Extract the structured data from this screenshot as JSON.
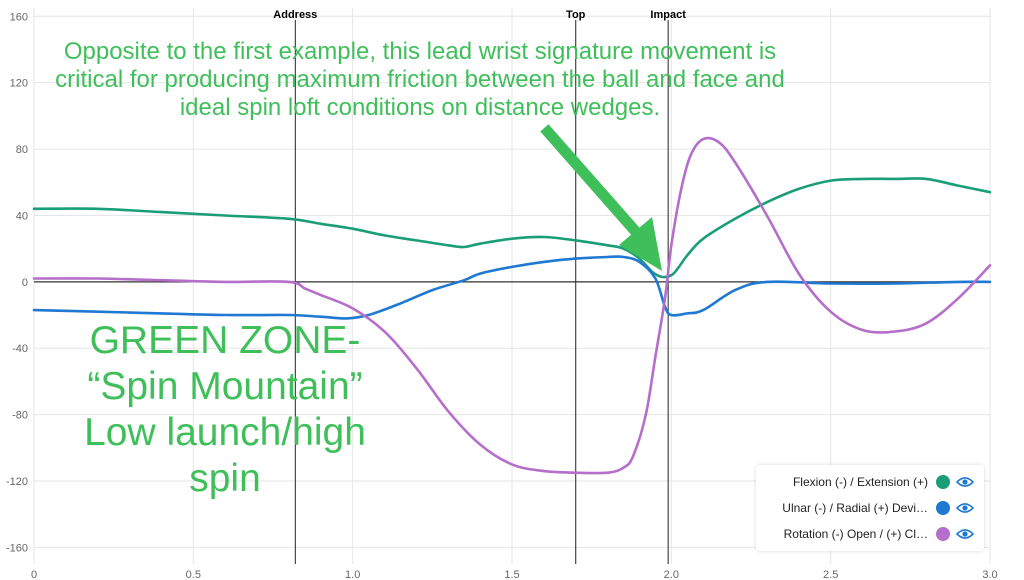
{
  "chart_data": {
    "type": "line",
    "xlim": [
      0,
      3.0
    ],
    "ylim": [
      -170,
      165
    ],
    "x_ticks": [
      "0",
      "0.5",
      "1.0",
      "1.5",
      "2.0",
      "2.5",
      "3.0"
    ],
    "x_tick_values": [
      0,
      0.5,
      1.0,
      1.5,
      2.0,
      2.5,
      3.0
    ],
    "y_ticks": [
      "160",
      "120",
      "80",
      "40",
      "0",
      "-40",
      "-80",
      "-120",
      "-160"
    ],
    "y_tick_values": [
      160,
      120,
      80,
      40,
      0,
      -40,
      -80,
      -120,
      -160
    ],
    "grid": true,
    "legend_position": "bottom-right",
    "events": [
      {
        "label": "Address",
        "x": 0.82
      },
      {
        "label": "Top",
        "x": 1.7
      },
      {
        "label": "Impact",
        "x": 1.99
      }
    ],
    "series": [
      {
        "name": "Flexion (-) / Extension (+)",
        "color": "#1a9e77",
        "x": [
          0,
          0.2,
          0.4,
          0.6,
          0.8,
          0.9,
          1.0,
          1.1,
          1.2,
          1.3,
          1.35,
          1.4,
          1.5,
          1.6,
          1.7,
          1.8,
          1.85,
          1.9,
          1.94,
          1.97,
          2.0,
          2.02,
          2.05,
          2.1,
          2.2,
          2.3,
          2.4,
          2.5,
          2.6,
          2.7,
          2.8,
          2.9,
          3.0
        ],
        "values": [
          44,
          44,
          42,
          40,
          38,
          35,
          32,
          28,
          25,
          22,
          21,
          23,
          26,
          27,
          25,
          22,
          20,
          14,
          6,
          3,
          4,
          8,
          16,
          26,
          38,
          48,
          56,
          61,
          62,
          62,
          62,
          58,
          54
        ]
      },
      {
        "name": "Ulnar (-) / Radial (+) Devi…",
        "color": "#1f78d1",
        "x": [
          0,
          0.2,
          0.4,
          0.6,
          0.8,
          0.9,
          0.98,
          1.05,
          1.15,
          1.25,
          1.35,
          1.4,
          1.5,
          1.6,
          1.7,
          1.8,
          1.85,
          1.9,
          1.95,
          1.98,
          2.0,
          2.05,
          2.1,
          2.2,
          2.3,
          2.5,
          2.7,
          2.9,
          3.0
        ],
        "values": [
          -17,
          -18,
          -19,
          -20,
          -20,
          -21,
          -22,
          -20,
          -13,
          -5,
          1,
          5,
          9,
          12,
          14,
          15,
          15,
          12,
          2,
          -15,
          -20,
          -19,
          -17,
          -5,
          0,
          -1,
          -1,
          0,
          0
        ]
      },
      {
        "name": "Rotation (-) Open / (+) Cl…",
        "color": "#b56ec9",
        "x": [
          0,
          0.2,
          0.4,
          0.6,
          0.8,
          0.85,
          0.9,
          1.0,
          1.1,
          1.2,
          1.3,
          1.4,
          1.5,
          1.6,
          1.7,
          1.8,
          1.85,
          1.88,
          1.92,
          1.95,
          1.98,
          2.0,
          2.03,
          2.06,
          2.1,
          2.15,
          2.2,
          2.3,
          2.4,
          2.5,
          2.6,
          2.7,
          2.8,
          2.9,
          3.0
        ],
        "values": [
          2,
          2,
          1,
          0,
          0,
          -4,
          -8,
          -16,
          -30,
          -52,
          -78,
          -98,
          -110,
          -114,
          -115,
          -115,
          -112,
          -105,
          -80,
          -45,
          -10,
          22,
          55,
          76,
          86,
          84,
          72,
          40,
          5,
          -18,
          -29,
          -30,
          -25,
          -10,
          10
        ]
      }
    ]
  },
  "annotations": {
    "top_note": "Opposite to the first example, this lead wrist signature movement is critical for producing maximum friction between the ball and face and ideal spin loft conditions on distance wedges.",
    "zone_line1": "GREEN ZONE-",
    "zone_line2": "“Spin Mountain”",
    "zone_line3": "Low launch/high",
    "zone_line4": "spin",
    "color": "#3fbf5a"
  },
  "legend": {
    "items": [
      {
        "label": "Flexion (-) / Extension (+)",
        "color": "#1a9e77"
      },
      {
        "label": "Ulnar (-) / Radial (+) Devi…",
        "color": "#1f78d1"
      },
      {
        "label": "Rotation (-) Open / (+) Cl…",
        "color": "#b56ec9"
      }
    ],
    "eye_icon": "eye-icon",
    "eye_color": "#1f78d1"
  }
}
